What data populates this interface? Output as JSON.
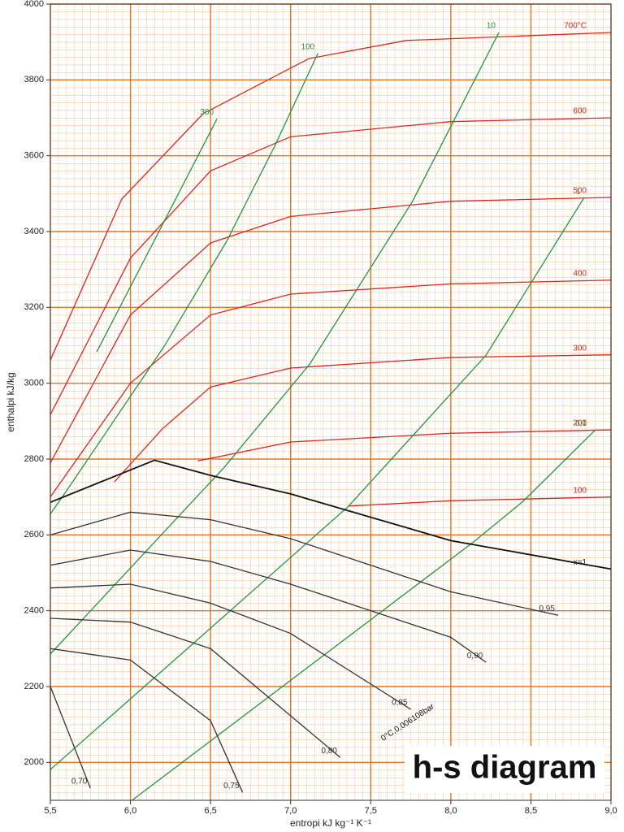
{
  "chart_data": {
    "type": "line",
    "title": "h-s diagram",
    "x_label": "entropi kJ kg⁻¹ K⁻¹",
    "y_label": "enthalpi kJ/kg",
    "xlim": [
      5.5,
      9.0
    ],
    "ylim": [
      1900,
      4000
    ],
    "xticks": [
      {
        "value": 5.5,
        "label": "5,5"
      },
      {
        "value": 6.0,
        "label": "6,0"
      },
      {
        "value": 6.5,
        "label": "6,5"
      },
      {
        "value": 7.0,
        "label": "7,0"
      },
      {
        "value": 7.5,
        "label": "7,5"
      },
      {
        "value": 8.0,
        "label": "8,0"
      },
      {
        "value": 8.5,
        "label": "8,5"
      },
      {
        "value": 9.0,
        "label": "9,0"
      }
    ],
    "yticks": [
      2000,
      2200,
      2400,
      2600,
      2800,
      3000,
      3200,
      3400,
      3600,
      3800,
      4000
    ],
    "grid": true,
    "annotation": "0°C,0,006108bar",
    "series": [
      {
        "name": "700°C",
        "color": "#d9251d",
        "x": [
          5.5,
          5.946,
          6.454,
          7.113,
          7.722,
          9.0
        ],
        "values": [
          3061,
          3486,
          3711,
          3856,
          3904,
          3925
        ]
      },
      {
        "name": "600",
        "color": "#d9251d",
        "x": [
          5.5,
          6.0,
          6.5,
          7.0,
          8.0,
          9.0
        ],
        "values": [
          2917,
          3330,
          3560,
          3650,
          3690,
          3700
        ]
      },
      {
        "name": "500",
        "color": "#d9251d",
        "x": [
          5.5,
          6.0,
          6.5,
          7.0,
          8.0,
          9.0
        ],
        "values": [
          2790,
          3180,
          3370,
          3440,
          3480,
          3490
        ]
      },
      {
        "name": "400",
        "color": "#d9251d",
        "x": [
          5.5,
          6.0,
          6.5,
          7.0,
          8.0,
          9.0
        ],
        "values": [
          2700,
          3000,
          3180,
          3235,
          3262,
          3272
        ]
      },
      {
        "name": "300",
        "color": "#d9251d",
        "x": [
          5.9,
          6.2,
          6.5,
          7.0,
          8.0,
          9.0
        ],
        "values": [
          2740,
          2880,
          2990,
          3040,
          3068,
          3075
        ]
      },
      {
        "name": "200",
        "color": "#d9251d",
        "x": [
          6.42,
          7.0,
          8.0,
          9.0
        ],
        "values": [
          2795,
          2845,
          2868,
          2877
        ]
      },
      {
        "name": "100",
        "color": "#d9251d",
        "x": [
          7.36,
          8.0,
          9.0
        ],
        "values": [
          2676,
          2690,
          2700
        ]
      },
      {
        "name": "300",
        "color": "#1e9640",
        "x": [
          5.79,
          6.23,
          6.54
        ],
        "values": [
          3083,
          3443,
          3697
        ]
      },
      {
        "name": "100",
        "color": "#1e9640",
        "x": [
          5.5,
          5.615,
          6.21,
          6.6,
          6.9,
          7.17
        ],
        "values": [
          2655,
          2725,
          3097,
          3374,
          3625,
          3870
        ]
      },
      {
        "name": "10",
        "color": "#1e9640",
        "x": [
          5.5,
          6.585,
          7.12,
          7.76,
          8.3
        ],
        "values": [
          2286,
          2778,
          3051,
          3479,
          3925
        ]
      },
      {
        "name": "1",
        "color": "#1e9640",
        "x": [
          5.5,
          7.36,
          8.22,
          8.83
        ],
        "values": [
          1981,
          2675,
          3074,
          3488
        ]
      },
      {
        "name": "0,1",
        "color": "#1e9640",
        "x": [
          6.01,
          8.15,
          8.45,
          8.9
        ],
        "values": [
          1900,
          2584,
          2688,
          2876
        ]
      },
      {
        "name": "x=1",
        "color": "#111111",
        "x": [
          5.5,
          6.15,
          6.5,
          7.0,
          8.0,
          9.0
        ],
        "values": [
          2686,
          2797,
          2757,
          2708,
          2585,
          2510
        ]
      },
      {
        "name": "0,95",
        "color": "#333333",
        "x": [
          5.5,
          6.0,
          6.5,
          7.0,
          8.0,
          8.67
        ],
        "values": [
          2600,
          2660,
          2640,
          2590,
          2450,
          2388
        ]
      },
      {
        "name": "0,90",
        "color": "#333333",
        "x": [
          5.5,
          6.0,
          6.5,
          7.0,
          8.0,
          8.22
        ],
        "values": [
          2520,
          2560,
          2530,
          2470,
          2330,
          2264
        ]
      },
      {
        "name": "0,85",
        "color": "#333333",
        "x": [
          5.5,
          6.0,
          6.5,
          7.0,
          7.75
        ],
        "values": [
          2460,
          2470,
          2420,
          2340,
          2140
        ]
      },
      {
        "name": "0,80",
        "color": "#333333",
        "x": [
          5.5,
          6.0,
          6.5,
          7.31
        ],
        "values": [
          2380,
          2370,
          2300,
          2013
        ]
      },
      {
        "name": "0,75",
        "color": "#333333",
        "x": [
          5.5,
          6.0,
          6.5,
          6.7
        ],
        "values": [
          2300,
          2270,
          2110,
          1921
        ]
      },
      {
        "name": "0,70",
        "color": "#333333",
        "x": [
          5.5,
          5.75
        ],
        "values": [
          2200,
          1932
        ]
      }
    ]
  }
}
